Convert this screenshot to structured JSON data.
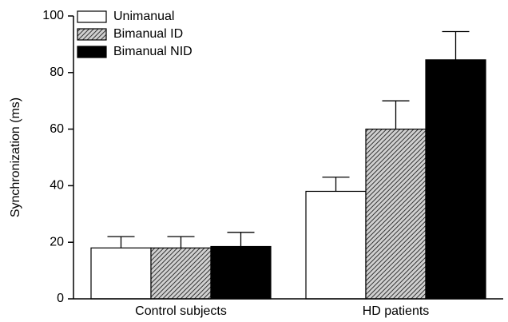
{
  "chart_data": {
    "type": "bar",
    "y_label": "Synchronization (ms)",
    "categories": [
      "Control subjects",
      "HD patients"
    ],
    "series": [
      {
        "name": "Unimanual",
        "color": "#ffffff",
        "values": [
          18,
          38
        ],
        "errors": [
          4,
          5
        ]
      },
      {
        "name": "Bimanual ID",
        "color": "#9a9a9a",
        "hatch": true,
        "values": [
          18,
          60
        ],
        "errors": [
          4,
          10
        ]
      },
      {
        "name": "Bimanual NID",
        "color": "#000000",
        "values": [
          18.5,
          84.5
        ],
        "errors": [
          5,
          10
        ]
      }
    ],
    "ylim": [
      0,
      100
    ],
    "yticks": [
      0,
      20,
      40,
      60,
      80,
      100
    ],
    "legend": "upper left"
  }
}
